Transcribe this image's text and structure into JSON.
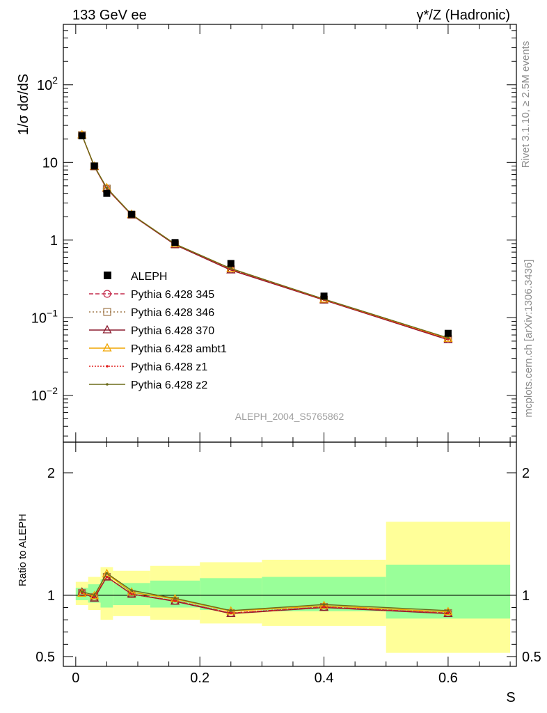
{
  "header": {
    "left_title": "133 GeV ee",
    "right_title": "γ*/Z (Hadronic)"
  },
  "side_labels": {
    "rivet": "Rivet 3.1.10, ≥ 2.5M events",
    "mcplots": "mcplots.cern.ch [arXiv:1306.3436]"
  },
  "watermark": "ALEPH_2004_S5765862",
  "chart_data": [
    {
      "type": "line",
      "panel": "main",
      "ylabel": "1/σ  dσ/dS",
      "xlabel": "",
      "yscale": "log",
      "xlim": [
        -0.02,
        0.71
      ],
      "ylim": [
        0.0025,
        600
      ],
      "y_ticks": [
        {
          "value": 0.01,
          "base": "10",
          "exp": "−2"
        },
        {
          "value": 0.1,
          "base": "10",
          "exp": "−1"
        },
        {
          "value": 1,
          "base": "1",
          "exp": ""
        },
        {
          "value": 10,
          "base": "10",
          "exp": ""
        },
        {
          "value": 100,
          "base": "10",
          "exp": "2"
        }
      ],
      "x": [
        0.01,
        0.03,
        0.05,
        0.09,
        0.16,
        0.25,
        0.4,
        0.6
      ],
      "data": {
        "name": "ALEPH",
        "values": [
          22.0,
          9.0,
          4.0,
          2.15,
          0.93,
          0.5,
          0.19,
          0.063
        ]
      },
      "series": [
        {
          "name": "Pythia 6.428 345",
          "color": "#c42a4a",
          "marker": "circle",
          "dash": "6,3",
          "values": [
            22.5,
            8.9,
            4.6,
            2.12,
            0.88,
            0.42,
            0.171,
            0.053
          ]
        },
        {
          "name": "Pythia 6.428 346",
          "color": "#a0784a",
          "marker": "square",
          "dash": "2,3",
          "values": [
            22.5,
            8.9,
            4.6,
            2.12,
            0.88,
            0.42,
            0.171,
            0.053
          ]
        },
        {
          "name": "Pythia 6.428 370",
          "color": "#8b1a2e",
          "marker": "triangle",
          "dash": "",
          "values": [
            22.5,
            8.8,
            4.6,
            2.11,
            0.87,
            0.41,
            0.169,
            0.052
          ]
        },
        {
          "name": "Pythia 6.428 ambt1",
          "color": "#f0a500",
          "marker": "triangle",
          "dash": "",
          "values": [
            22.6,
            8.9,
            4.7,
            2.14,
            0.89,
            0.43,
            0.173,
            0.054
          ]
        },
        {
          "name": "Pythia 6.428 z1",
          "color": "#e0201e",
          "marker": "dot",
          "dash": "2,2",
          "values": [
            22.5,
            8.9,
            4.6,
            2.12,
            0.88,
            0.42,
            0.171,
            0.053
          ]
        },
        {
          "name": "Pythia 6.428 z2",
          "color": "#6b6b1a",
          "marker": "dot",
          "dash": "",
          "values": [
            22.6,
            8.95,
            4.7,
            2.14,
            0.89,
            0.43,
            0.174,
            0.055
          ]
        }
      ]
    },
    {
      "type": "line",
      "panel": "ratio",
      "ylabel": "Ratio to ALEPH",
      "xlabel": "S",
      "ylim": [
        0.42,
        2.25
      ],
      "y_ticks": [
        0.5,
        1,
        2
      ],
      "x_ticks": [
        0,
        0.2,
        0.4,
        0.6
      ],
      "bins": [
        {
          "lo": 0.0,
          "hi": 0.02,
          "inner": [
            0.96,
            1.06
          ],
          "outer": [
            0.92,
            1.11
          ]
        },
        {
          "lo": 0.02,
          "hi": 0.04,
          "inner": [
            0.94,
            1.09
          ],
          "outer": [
            0.88,
            1.15
          ]
        },
        {
          "lo": 0.04,
          "hi": 0.06,
          "inner": [
            0.9,
            1.13
          ],
          "outer": [
            0.8,
            1.23
          ]
        },
        {
          "lo": 0.06,
          "hi": 0.12,
          "inner": [
            0.92,
            1.1
          ],
          "outer": [
            0.83,
            1.2
          ]
        },
        {
          "lo": 0.12,
          "hi": 0.2,
          "inner": [
            0.9,
            1.12
          ],
          "outer": [
            0.8,
            1.24
          ]
        },
        {
          "lo": 0.2,
          "hi": 0.3,
          "inner": [
            0.88,
            1.14
          ],
          "outer": [
            0.77,
            1.27
          ]
        },
        {
          "lo": 0.3,
          "hi": 0.5,
          "inner": [
            0.87,
            1.15
          ],
          "outer": [
            0.75,
            1.29
          ]
        },
        {
          "lo": 0.5,
          "hi": 0.7,
          "inner": [
            0.81,
            1.25
          ],
          "outer": [
            0.53,
            1.6
          ]
        }
      ],
      "series": [
        {
          "name": "Pythia 6.428 345",
          "values": [
            1.02,
            0.985,
            1.15,
            1.01,
            0.955,
            0.855,
            0.905,
            0.855
          ]
        },
        {
          "name": "Pythia 6.428 346",
          "values": [
            1.02,
            0.985,
            1.15,
            1.01,
            0.955,
            0.855,
            0.905,
            0.855
          ]
        },
        {
          "name": "Pythia 6.428 370",
          "values": [
            1.025,
            0.975,
            1.15,
            1.01,
            0.95,
            0.85,
            0.9,
            0.85
          ]
        },
        {
          "name": "Pythia 6.428 ambt1",
          "values": [
            1.015,
            0.995,
            1.175,
            1.025,
            0.97,
            0.87,
            0.915,
            0.865
          ]
        },
        {
          "name": "Pythia 6.428 z1",
          "values": [
            1.02,
            0.985,
            1.15,
            1.01,
            0.955,
            0.855,
            0.905,
            0.855
          ]
        },
        {
          "name": "Pythia 6.428 z2",
          "values": [
            1.03,
            1.0,
            1.18,
            1.04,
            0.975,
            0.875,
            0.925,
            0.875
          ]
        }
      ]
    }
  ]
}
